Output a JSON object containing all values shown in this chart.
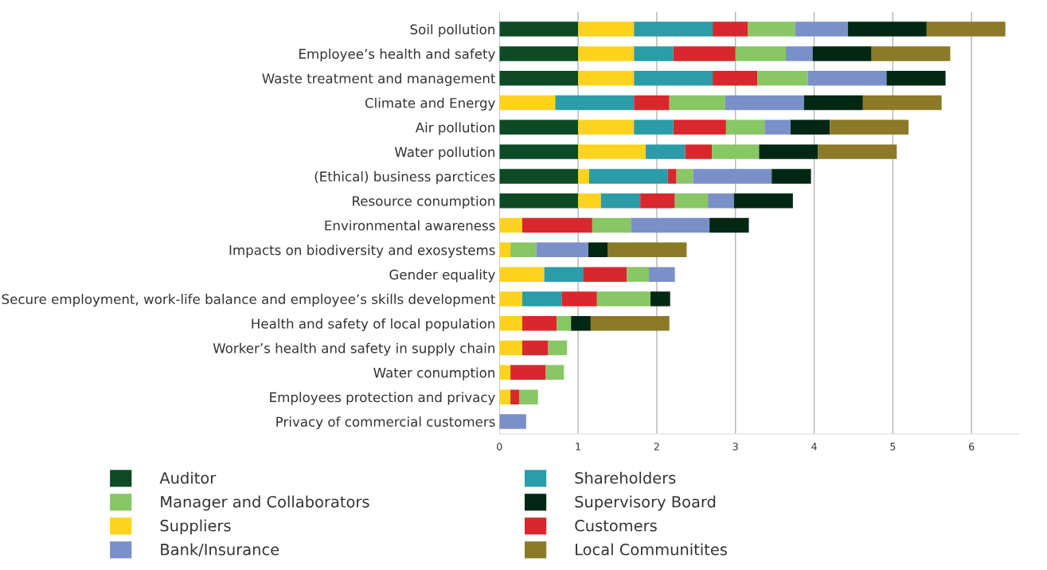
{
  "chart_data": {
    "type": "bar",
    "orientation": "horizontal",
    "stacked": true,
    "grid": "x",
    "legend": "bottom",
    "categories": [
      "Soil pollution",
      "Employee’s health and safety",
      "Waste treatment and management",
      "Climate and Energy",
      "Air pollution",
      "Water pollution",
      "(Ethical) business parctices",
      "Resource conumption",
      "Environmental awareness",
      "Impacts on biodiversity and exosystems",
      "Gender equality",
      "Secure employment, work-life balance and employee’s skills development",
      "Health and safety of local population",
      "Worker’s health and safety in supply chain",
      "Water conumption",
      "Employees protection and privacy",
      "Privacy of commercial customers"
    ],
    "xlim": [
      0,
      6.6
    ],
    "xticks": [
      0,
      1,
      2,
      3,
      4,
      5,
      6
    ],
    "series": [
      {
        "name": "Auditor",
        "color": "#0d4a25",
        "values": [
          1,
          1,
          1,
          null,
          1,
          1,
          1,
          1,
          null,
          null,
          null,
          null,
          null,
          null,
          null,
          null,
          null
        ]
      },
      {
        "name": "Suppliers",
        "color": "#fdd31f",
        "values": [
          0.71,
          0.71,
          0.71,
          0.71,
          0.71,
          0.86,
          0.14,
          0.29,
          0.29,
          0.14,
          0.57,
          0.29,
          0.29,
          0.29,
          0.14,
          0.14,
          null
        ]
      },
      {
        "name": "Shareholders",
        "color": "#2b9ca8",
        "values": [
          1,
          0.5,
          1,
          1,
          0.5,
          0.5,
          1,
          0.5,
          null,
          null,
          0.5,
          0.5,
          null,
          null,
          null,
          null,
          null
        ]
      },
      {
        "name": "Customers",
        "color": "#d9272e",
        "values": [
          0.45,
          0.79,
          0.57,
          0.45,
          0.67,
          0.34,
          0.11,
          0.44,
          0.89,
          null,
          0.55,
          0.45,
          0.44,
          0.33,
          0.45,
          0.11,
          null
        ]
      },
      {
        "name": "Manager and Collaborators",
        "color": "#88c764",
        "values": [
          0.6,
          0.64,
          0.64,
          0.71,
          0.49,
          0.6,
          0.21,
          0.42,
          0.49,
          0.33,
          0.28,
          0.68,
          0.18,
          0.24,
          0.23,
          0.24,
          null
        ]
      },
      {
        "name": "Bank/Insurance",
        "color": "#7b90c9",
        "values": [
          0.67,
          0.34,
          1,
          1,
          0.33,
          null,
          1,
          0.33,
          1,
          0.66,
          0.33,
          null,
          null,
          null,
          null,
          null,
          0.34
        ]
      },
      {
        "name": "Supervisory Board",
        "color": "#022814",
        "values": [
          1,
          0.75,
          0.75,
          0.75,
          0.5,
          0.75,
          0.5,
          0.75,
          0.5,
          0.25,
          null,
          0.25,
          0.25,
          null,
          null,
          null,
          null
        ]
      },
      {
        "name": "Local Communitites",
        "color": "#8c7a28",
        "values": [
          1,
          1,
          null,
          1,
          1,
          1,
          null,
          null,
          null,
          1,
          null,
          null,
          1,
          null,
          null,
          null,
          null
        ]
      }
    ]
  }
}
